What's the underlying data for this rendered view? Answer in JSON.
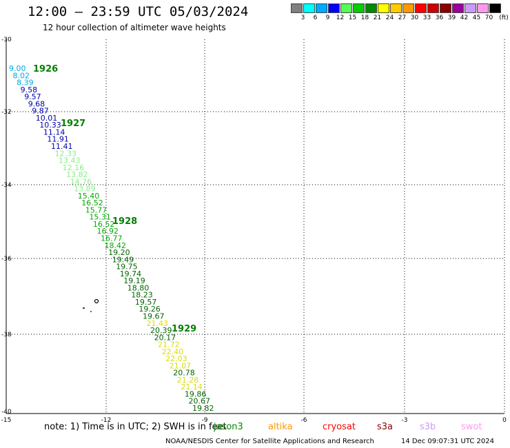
{
  "header": {
    "title": "12:00 – 23:59 UTC 05/03/2024",
    "subtitle": "12 hour collection of altimeter wave heights"
  },
  "legend": {
    "unit": "(ft)",
    "bins": [
      {
        "label": "3",
        "color": "#808080"
      },
      {
        "label": "6",
        "color": "#00ffff"
      },
      {
        "label": "9",
        "color": "#00aaff"
      },
      {
        "label": "12",
        "color": "#0000ff"
      },
      {
        "label": "15",
        "color": "#55ff55"
      },
      {
        "label": "18",
        "color": "#00cc00"
      },
      {
        "label": "21",
        "color": "#008800"
      },
      {
        "label": "24",
        "color": "#ffff00"
      },
      {
        "label": "27",
        "color": "#ffcc00"
      },
      {
        "label": "30",
        "color": "#ff9900"
      },
      {
        "label": "33",
        "color": "#ff0000"
      },
      {
        "label": "36",
        "color": "#cc0000"
      },
      {
        "label": "39",
        "color": "#880000"
      },
      {
        "label": "42",
        "color": "#990099"
      },
      {
        "label": "45",
        "color": "#cc99ff"
      },
      {
        "label": "70",
        "color": "#ff99ee"
      },
      {
        "label": "",
        "color": "#000000"
      }
    ]
  },
  "axes": {
    "lat_ticks": [
      "-30",
      "-32",
      "-34",
      "-36",
      "-38",
      "-40"
    ],
    "lon_ticks": [
      "-15",
      "-12",
      "-9",
      "-6",
      "-3",
      "0"
    ]
  },
  "passes": [
    {
      "label": "1926",
      "color": "#008000"
    },
    {
      "label": "1927",
      "color": "#008000"
    },
    {
      "label": "1928",
      "color": "#008000"
    },
    {
      "label": "1929",
      "color": "#008000"
    }
  ],
  "wave_heights": [
    {
      "value": "9.00",
      "color": "#00aadd"
    },
    {
      "value": "8.02",
      "color": "#00aadd"
    },
    {
      "value": "8.39",
      "color": "#00aadd"
    },
    {
      "value": "9.58",
      "color": "#0000aa"
    },
    {
      "value": "9.57",
      "color": "#0000aa"
    },
    {
      "value": "9.68",
      "color": "#0000aa"
    },
    {
      "value": "9.87",
      "color": "#0000aa"
    },
    {
      "value": "10.01",
      "color": "#0000aa"
    },
    {
      "value": "10.33",
      "color": "#0000aa"
    },
    {
      "value": "11.14",
      "color": "#0000aa"
    },
    {
      "value": "11.91",
      "color": "#0000aa"
    },
    {
      "value": "11.41",
      "color": "#0000aa"
    },
    {
      "value": "12.33",
      "color": "#88ee88"
    },
    {
      "value": "13.43",
      "color": "#88ee88"
    },
    {
      "value": "12.16",
      "color": "#88ee88"
    },
    {
      "value": "13.82",
      "color": "#88ee88"
    },
    {
      "value": "14.76",
      "color": "#88ee88"
    },
    {
      "value": "13.89",
      "color": "#88ee88"
    },
    {
      "value": "15.40",
      "color": "#00aa00"
    },
    {
      "value": "16.52",
      "color": "#00aa00"
    },
    {
      "value": "15.77",
      "color": "#00aa00"
    },
    {
      "value": "15.31",
      "color": "#00aa00"
    },
    {
      "value": "16.52",
      "color": "#00aa00"
    },
    {
      "value": "16.92",
      "color": "#00aa00"
    },
    {
      "value": "16.77",
      "color": "#00aa00"
    },
    {
      "value": "18.42",
      "color": "#00aa00"
    },
    {
      "value": "19.20",
      "color": "#006600"
    },
    {
      "value": "19.49",
      "color": "#006600"
    },
    {
      "value": "19.75",
      "color": "#006600"
    },
    {
      "value": "19.74",
      "color": "#006600"
    },
    {
      "value": "19.19",
      "color": "#006600"
    },
    {
      "value": "18.80",
      "color": "#006600"
    },
    {
      "value": "18.23",
      "color": "#006600"
    },
    {
      "value": "19.57",
      "color": "#006600"
    },
    {
      "value": "19.26",
      "color": "#006600"
    },
    {
      "value": "19.67",
      "color": "#006600"
    },
    {
      "value": "21.43",
      "color": "#dddd00"
    },
    {
      "value": "20.39",
      "color": "#006600"
    },
    {
      "value": "20.17",
      "color": "#006600"
    },
    {
      "value": "21.72",
      "color": "#dddd00"
    },
    {
      "value": "22.40",
      "color": "#dddd00"
    },
    {
      "value": "22.03",
      "color": "#dddd00"
    },
    {
      "value": "21.07",
      "color": "#dddd00"
    },
    {
      "value": "20.78",
      "color": "#006600"
    },
    {
      "value": "21.28",
      "color": "#dddd00"
    },
    {
      "value": "21.14",
      "color": "#dddd00"
    },
    {
      "value": "19.86",
      "color": "#006600"
    },
    {
      "value": "20.67",
      "color": "#006600"
    },
    {
      "value": "19.82",
      "color": "#006600"
    }
  ],
  "note": {
    "text": "note: 1) Time is in UTC; 2) SWH is in feet"
  },
  "satellites": [
    {
      "name": "jason3",
      "color": "#008800"
    },
    {
      "name": "altika",
      "color": "#ff9900"
    },
    {
      "name": "cryosat",
      "color": "#ff0000"
    },
    {
      "name": "s3a",
      "color": "#880000"
    },
    {
      "name": "s3b",
      "color": "#cc99ff"
    },
    {
      "name": "swot",
      "color": "#ff99ee"
    }
  ],
  "footer": {
    "credit": "NOAA/NESDIS Center for Satellite Applications and Research",
    "timestamp": "14 Dec 09:07:31 UTC 2024"
  }
}
